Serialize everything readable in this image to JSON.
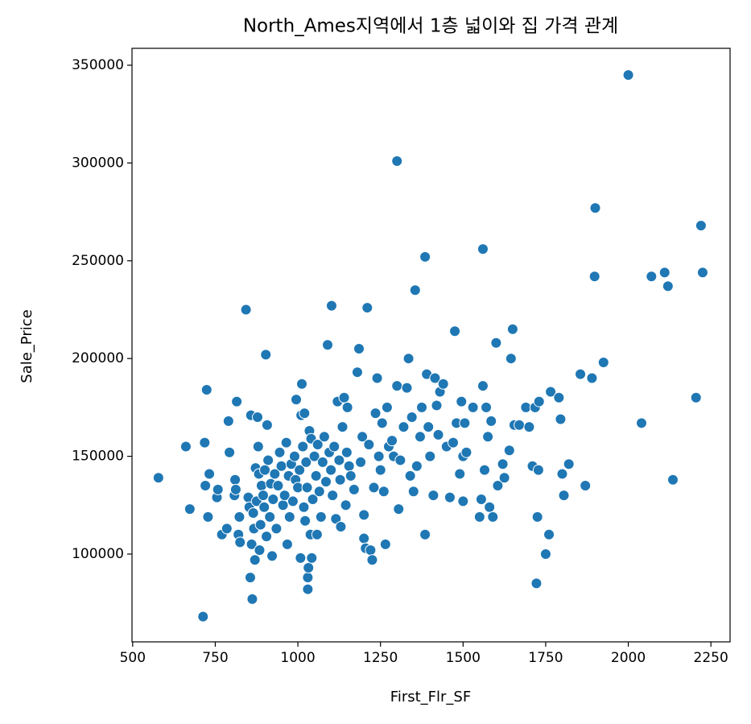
{
  "chart_data": {
    "type": "scatter",
    "title": "North_Ames지역에서 1층 넓이와 집 가격 관계",
    "x_label": "First_Flr_SF",
    "y_label": "Sale_Price",
    "color": "#1f77b4",
    "xlim": [
      498,
      2308
    ],
    "ylim": [
      55100,
      358650
    ],
    "xticks": [
      500,
      750,
      1000,
      1250,
      1500,
      1750,
      2000,
      2250
    ],
    "yticks": [
      100000,
      150000,
      200000,
      250000,
      300000,
      350000
    ],
    "grid": false,
    "x": [
      578,
      661,
      673,
      713,
      718,
      720,
      724,
      728,
      732,
      755,
      758,
      770,
      785,
      790,
      793,
      808,
      810,
      812,
      815,
      820,
      823,
      825,
      843,
      850,
      853,
      856,
      858,
      860,
      862,
      865,
      867,
      870,
      872,
      875,
      878,
      880,
      882,
      884,
      887,
      890,
      895,
      898,
      900,
      903,
      905,
      907,
      910,
      915,
      918,
      922,
      925,
      930,
      935,
      940,
      945,
      950,
      955,
      960,
      965,
      968,
      972,
      975,
      980,
      985,
      990,
      993,
      995,
      1000,
      1005,
      1008,
      1010,
      1012,
      1015,
      1018,
      1020,
      1022,
      1025,
      1028,
      1030,
      1030,
      1032,
      1035,
      1038,
      1040,
      1042,
      1045,
      1050,
      1055,
      1058,
      1060,
      1065,
      1070,
      1075,
      1080,
      1085,
      1090,
      1095,
      1100,
      1102,
      1105,
      1110,
      1115,
      1120,
      1125,
      1128,
      1130,
      1135,
      1140,
      1145,
      1148,
      1150,
      1155,
      1160,
      1170,
      1180,
      1185,
      1190,
      1195,
      1200,
      1200,
      1205,
      1210,
      1215,
      1220,
      1225,
      1230,
      1235,
      1240,
      1245,
      1250,
      1255,
      1260,
      1265,
      1270,
      1275,
      1285,
      1290,
      1300,
      1300,
      1305,
      1310,
      1320,
      1330,
      1335,
      1340,
      1345,
      1350,
      1355,
      1360,
      1370,
      1375,
      1385,
      1385,
      1390,
      1395,
      1400,
      1410,
      1415,
      1420,
      1425,
      1430,
      1440,
      1450,
      1460,
      1470,
      1475,
      1480,
      1490,
      1495,
      1500,
      1500,
      1505,
      1510,
      1530,
      1550,
      1555,
      1560,
      1560,
      1565,
      1570,
      1575,
      1580,
      1585,
      1590,
      1600,
      1605,
      1620,
      1625,
      1640,
      1645,
      1650,
      1655,
      1670,
      1690,
      1700,
      1710,
      1718,
      1722,
      1725,
      1728,
      1730,
      1750,
      1760,
      1765,
      1790,
      1795,
      1800,
      1805,
      1820,
      1855,
      1870,
      1890,
      1898,
      1900,
      1925,
      2000,
      2040,
      2070,
      2110,
      2120,
      2135,
      2205,
      2220,
      2225
    ],
    "y": [
      139000,
      155000,
      123000,
      68000,
      157000,
      135000,
      184000,
      119000,
      141000,
      129000,
      133000,
      110000,
      113000,
      168000,
      152000,
      130000,
      138000,
      133000,
      178000,
      110000,
      119000,
      106000,
      225000,
      129000,
      124000,
      88000,
      171000,
      105000,
      77000,
      121000,
      113000,
      97000,
      144000,
      127000,
      170000,
      155000,
      141000,
      102000,
      115000,
      135000,
      130000,
      124000,
      143000,
      202000,
      109000,
      166000,
      148000,
      119000,
      136000,
      99000,
      128000,
      141000,
      113000,
      135000,
      152000,
      145000,
      125000,
      130000,
      157000,
      105000,
      140000,
      119000,
      146000,
      127000,
      150000,
      138000,
      179000,
      134000,
      143000,
      98000,
      171000,
      187000,
      155000,
      124000,
      172000,
      117000,
      147000,
      134000,
      82000,
      88000,
      93000,
      163000,
      110000,
      159000,
      98000,
      128000,
      150000,
      140000,
      110000,
      156000,
      132000,
      119000,
      147000,
      160000,
      137000,
      207000,
      152000,
      143000,
      227000,
      130000,
      155000,
      118000,
      178000,
      148000,
      138000,
      114000,
      165000,
      180000,
      125000,
      152000,
      175000,
      145000,
      140000,
      133000,
      193000,
      205000,
      147000,
      160000,
      108000,
      120000,
      103000,
      226000,
      156000,
      102000,
      97000,
      134000,
      172000,
      190000,
      150000,
      143000,
      167000,
      132000,
      105000,
      175000,
      155000,
      158000,
      150000,
      301000,
      186000,
      123000,
      148000,
      165000,
      185000,
      200000,
      140000,
      170000,
      132000,
      235000,
      145000,
      160000,
      175000,
      252000,
      110000,
      192000,
      165000,
      150000,
      130000,
      190000,
      176000,
      161000,
      183000,
      187000,
      155000,
      129000,
      157000,
      214000,
      167000,
      141000,
      178000,
      127000,
      150000,
      167000,
      152000,
      175000,
      119000,
      128000,
      186000,
      256000,
      143000,
      175000,
      160000,
      124000,
      168000,
      119000,
      208000,
      135000,
      146000,
      139000,
      153000,
      200000,
      215000,
      166000,
      166000,
      175000,
      165000,
      145000,
      175000,
      85000,
      119000,
      143000,
      178000,
      100000,
      110000,
      183000,
      180000,
      169000,
      141000,
      130000,
      146000,
      192000,
      135000,
      190000,
      242000,
      277000,
      198000,
      345000,
      167000,
      242000,
      244000,
      237000,
      138000,
      180000,
      268000,
      244000
    ]
  }
}
